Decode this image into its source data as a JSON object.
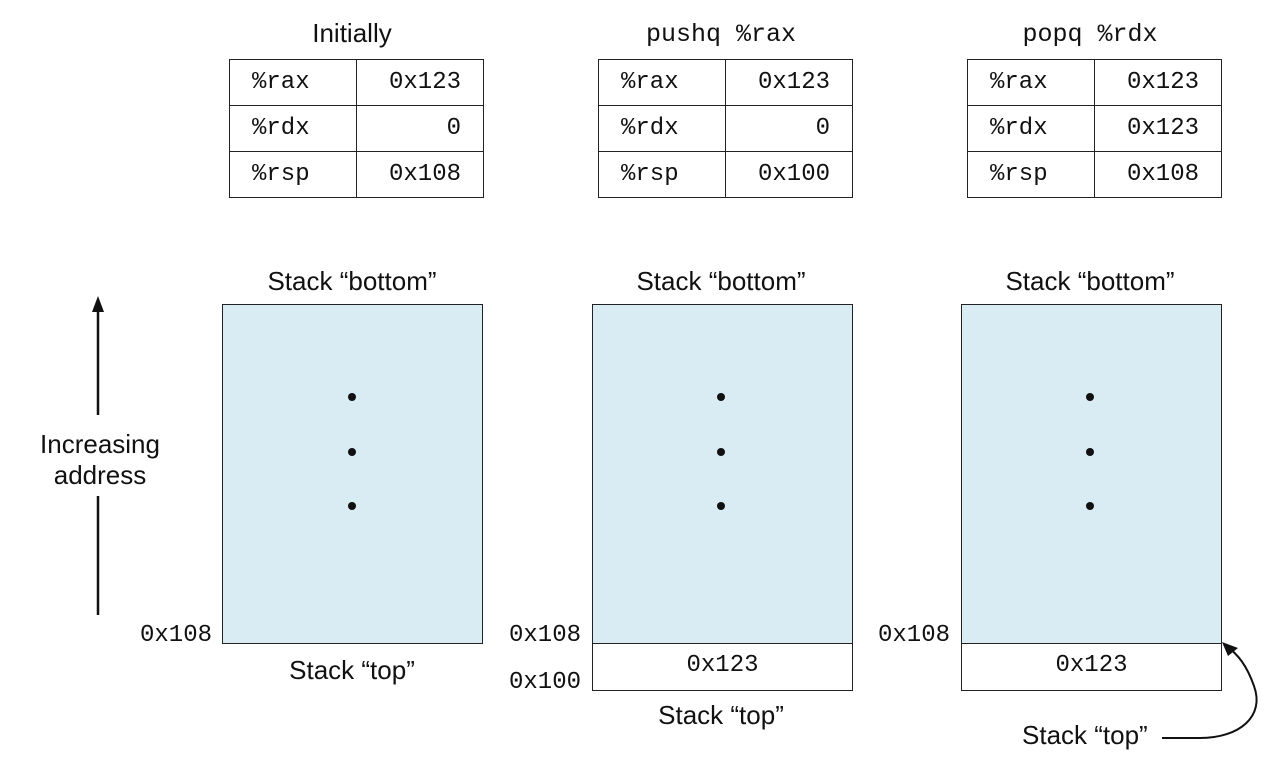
{
  "axis_label_line1": "Increasing",
  "axis_label_line2": "address",
  "columns": [
    {
      "title": "Initially",
      "registers": [
        {
          "name": "%rax",
          "value": "0x123"
        },
        {
          "name": "%rdx",
          "value": "0"
        },
        {
          "name": "%rsp",
          "value": "0x108"
        }
      ],
      "stack_bottom": "Stack “bottom”",
      "stack_top": "Stack “top”",
      "addr_top": "0x108"
    },
    {
      "title": "pushq %rax",
      "registers": [
        {
          "name": "%rax",
          "value": "0x123"
        },
        {
          "name": "%rdx",
          "value": "0"
        },
        {
          "name": "%rsp",
          "value": "0x100"
        }
      ],
      "stack_bottom": "Stack “bottom”",
      "stack_top": "Stack “top”",
      "addr_top": "0x108",
      "addr_bottom": "0x100",
      "cell_value": "0x123"
    },
    {
      "title": "popq %rdx",
      "registers": [
        {
          "name": "%rax",
          "value": "0x123"
        },
        {
          "name": "%rdx",
          "value": "0x123"
        },
        {
          "name": "%rsp",
          "value": "0x108"
        }
      ],
      "stack_bottom": "Stack “bottom”",
      "stack_top": "Stack “top”",
      "addr_top": "0x108",
      "cell_value": "0x123"
    }
  ]
}
